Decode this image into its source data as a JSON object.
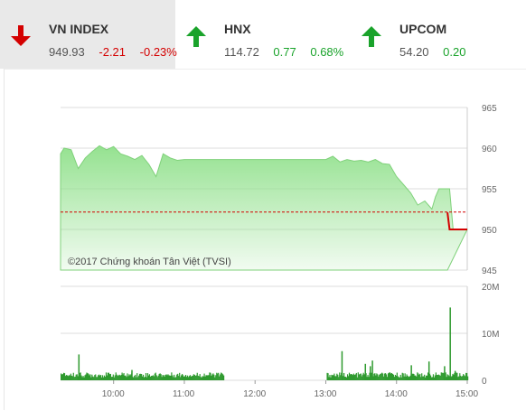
{
  "tabs": [
    {
      "name": "VN INDEX",
      "value": "949.93",
      "change": "-2.21",
      "pct": "-0.23%",
      "direction": "down",
      "icon": "arrow-down-icon"
    },
    {
      "name": "HNX",
      "value": "114.72",
      "change": "0.77",
      "pct": "0.68%",
      "direction": "up",
      "icon": "arrow-up-icon"
    },
    {
      "name": "UPCOM",
      "value": "54.20",
      "change": "0.20",
      "pct": "",
      "direction": "up",
      "icon": "arrow-up-icon"
    }
  ],
  "colors": {
    "down": "#d40000",
    "up": "#1aa32b",
    "area_fill": "#8fe08a",
    "reference_line": "#d40000"
  },
  "chart_data": [
    {
      "type": "area",
      "watermark": "©2017 Chứng khoán Tân Việt (TVSI)",
      "y_ticks": [
        "965",
        "960",
        "955",
        "950",
        "945"
      ],
      "ylim": [
        945,
        965
      ],
      "reference": 952.14,
      "x": [
        9.25,
        9.3,
        9.4,
        9.5,
        9.6,
        9.7,
        9.8,
        9.9,
        10.0,
        10.1,
        10.2,
        10.3,
        10.4,
        10.5,
        10.6,
        10.7,
        10.8,
        10.9,
        11.0,
        11.1,
        11.2,
        11.3,
        11.4,
        11.5,
        11.6,
        11.7,
        11.8,
        11.9,
        12.0,
        12.5,
        13.0,
        13.1,
        13.2,
        13.3,
        13.4,
        13.5,
        13.6,
        13.7,
        13.8,
        13.9,
        14.0,
        14.1,
        14.2,
        14.3,
        14.4,
        14.5,
        14.55,
        14.6,
        14.65,
        14.7,
        14.72,
        14.75,
        14.8,
        14.85,
        14.9,
        15.0
      ],
      "values": [
        959.3,
        960.0,
        959.8,
        957.5,
        958.8,
        959.6,
        960.3,
        959.8,
        960.2,
        959.3,
        959.0,
        958.6,
        959.1,
        958.0,
        956.5,
        959.3,
        958.8,
        958.5,
        958.6,
        958.6,
        958.6,
        958.6,
        958.6,
        958.6,
        958.6,
        958.6,
        958.6,
        958.6,
        958.6,
        958.6,
        958.6,
        959.0,
        958.3,
        958.6,
        958.4,
        958.5,
        958.3,
        958.6,
        958.1,
        958.0,
        956.5,
        955.5,
        954.5,
        953.0,
        953.5,
        952.5,
        954.0,
        955.0,
        955.0,
        955.0,
        955.0,
        955.0,
        950.0,
        950.0,
        950.0,
        950.0
      ],
      "close_segment": {
        "x": [
          14.72,
          14.75,
          15.0
        ],
        "values": [
          952.1,
          950.0,
          950.0
        ]
      }
    },
    {
      "type": "bar",
      "y_ticks": [
        "20M",
        "10M",
        "0"
      ],
      "ylim": [
        0,
        20
      ],
      "x_ticks": [
        "10:00",
        "11:00",
        "12:00",
        "13:00",
        "14:00",
        "15:00"
      ],
      "x_range": [
        9.25,
        15.0
      ],
      "spikes": [
        [
          9.5,
          5.5
        ],
        [
          10.25,
          2.2
        ],
        [
          13.22,
          6.2
        ],
        [
          13.55,
          3.5
        ],
        [
          13.62,
          3.0
        ],
        [
          13.65,
          4.2
        ],
        [
          14.2,
          3.2
        ],
        [
          14.45,
          4.0
        ],
        [
          14.67,
          3.0
        ],
        [
          14.75,
          15.5
        ],
        [
          14.82,
          2.0
        ]
      ],
      "base_level": 1.2
    }
  ]
}
